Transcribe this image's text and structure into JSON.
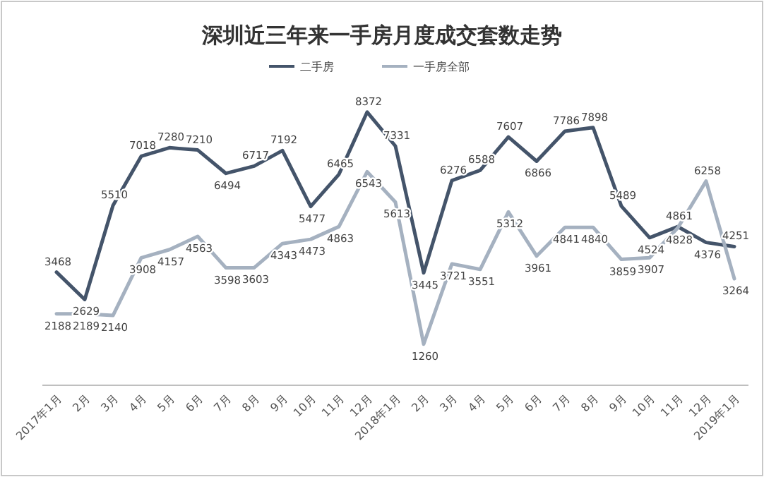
{
  "chart_data": {
    "type": "line",
    "title": "深圳近三年来一手房月度成交套数走势",
    "categories": [
      "2017年1月",
      "2月",
      "3月",
      "4月",
      "5月",
      "6月",
      "7月",
      "8月",
      "9月",
      "10月",
      "11月",
      "12月",
      "2018年1月",
      "2月",
      "3月",
      "4月",
      "5月",
      "6月",
      "7月",
      "8月",
      "9月",
      "10月",
      "11月",
      "12月",
      "2019年1月"
    ],
    "series": [
      {
        "name": "二手房",
        "color": "#44546a",
        "values": [
          3468,
          2629,
          5510,
          7018,
          7280,
          7210,
          6494,
          6717,
          7192,
          5477,
          6465,
          8372,
          7331,
          3445,
          6276,
          6588,
          7607,
          6866,
          7786,
          7898,
          5489,
          4524,
          4861,
          4376,
          4251
        ]
      },
      {
        "name": "一手房全部",
        "color": "#a5b1c0",
        "values": [
          2188,
          2189,
          2140,
          3908,
          4157,
          4563,
          3598,
          3603,
          4343,
          4473,
          4863,
          6543,
          5613,
          1260,
          3721,
          3551,
          5312,
          3961,
          4841,
          4840,
          3859,
          3907,
          4828,
          6258,
          3264
        ]
      }
    ],
    "data_labels": true,
    "legend": "top",
    "grid": false,
    "marker": "none",
    "line_style": "solid"
  }
}
